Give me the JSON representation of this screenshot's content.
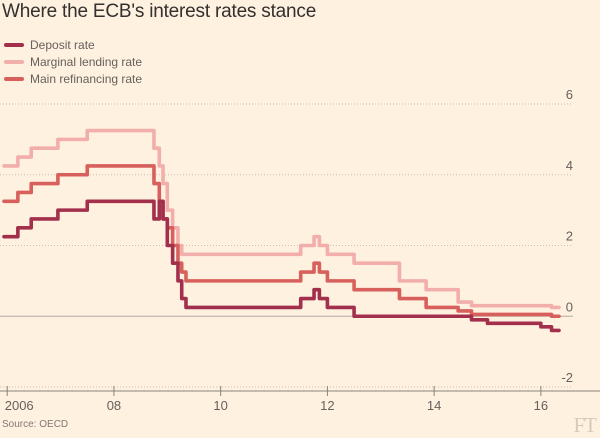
{
  "chart_data": {
    "type": "line",
    "title": "Where the ECB's interest rates stance",
    "source": "Source: OECD",
    "xlabel": "",
    "ylabel": "",
    "xlim": [
      2005.94,
      2016.34
    ],
    "ylim": [
      -2,
      6
    ],
    "x_ticks": [
      {
        "value": 2006,
        "label": "2006"
      },
      {
        "value": 2008,
        "label": "08"
      },
      {
        "value": 2010,
        "label": "10"
      },
      {
        "value": 2012,
        "label": "12"
      },
      {
        "value": 2014,
        "label": "14"
      },
      {
        "value": 2016,
        "label": "16"
      }
    ],
    "y_ticks": [
      {
        "value": 6,
        "label": "6"
      },
      {
        "value": 4,
        "label": "4"
      },
      {
        "value": 2,
        "label": "2"
      },
      {
        "value": 0,
        "label": "0"
      },
      {
        "value": -2,
        "label": "-2"
      }
    ],
    "series": [
      {
        "name": "Deposit rate",
        "color": "#a2304d",
        "steps": [
          [
            2005.94,
            2.25
          ],
          [
            2006.2,
            2.5
          ],
          [
            2006.45,
            2.75
          ],
          [
            2006.95,
            3.0
          ],
          [
            2007.45,
            3.0
          ],
          [
            2007.5,
            3.25
          ],
          [
            2008.6,
            3.25
          ],
          [
            2008.75,
            2.75
          ],
          [
            2008.85,
            3.25
          ],
          [
            2008.92,
            2.75
          ],
          [
            2009.0,
            2.0
          ],
          [
            2009.1,
            1.5
          ],
          [
            2009.2,
            1.0
          ],
          [
            2009.27,
            0.5
          ],
          [
            2009.35,
            0.25
          ],
          [
            2011.3,
            0.25
          ],
          [
            2011.5,
            0.5
          ],
          [
            2011.75,
            0.75
          ],
          [
            2011.85,
            0.5
          ],
          [
            2012.0,
            0.25
          ],
          [
            2012.5,
            0.0
          ],
          [
            2014.45,
            0.0
          ],
          [
            2014.7,
            -0.1
          ],
          [
            2015.0,
            -0.2
          ],
          [
            2015.95,
            -0.2
          ],
          [
            2016.0,
            -0.3
          ],
          [
            2016.2,
            -0.4
          ],
          [
            2016.34,
            -0.4
          ]
        ]
      },
      {
        "name": "Marginal lending rate",
        "color": "#f2aeaa",
        "steps": [
          [
            2005.94,
            4.25
          ],
          [
            2006.2,
            4.5
          ],
          [
            2006.45,
            4.75
          ],
          [
            2006.95,
            5.0
          ],
          [
            2007.45,
            5.0
          ],
          [
            2007.5,
            5.25
          ],
          [
            2008.6,
            5.25
          ],
          [
            2008.75,
            4.75
          ],
          [
            2008.85,
            4.25
          ],
          [
            2008.92,
            3.75
          ],
          [
            2009.0,
            3.0
          ],
          [
            2009.1,
            2.5
          ],
          [
            2009.2,
            2.0
          ],
          [
            2009.27,
            1.75
          ],
          [
            2011.3,
            1.75
          ],
          [
            2011.5,
            2.0
          ],
          [
            2011.75,
            2.25
          ],
          [
            2011.85,
            2.0
          ],
          [
            2012.0,
            1.75
          ],
          [
            2012.5,
            1.5
          ],
          [
            2013.35,
            1.0
          ],
          [
            2013.85,
            0.75
          ],
          [
            2014.45,
            0.4
          ],
          [
            2014.7,
            0.3
          ],
          [
            2015.95,
            0.3
          ],
          [
            2016.2,
            0.25
          ],
          [
            2016.34,
            0.25
          ]
        ]
      },
      {
        "name": "Main refinancing rate",
        "color": "#d7605c",
        "steps": [
          [
            2005.94,
            3.25
          ],
          [
            2006.2,
            3.5
          ],
          [
            2006.45,
            3.75
          ],
          [
            2006.95,
            4.0
          ],
          [
            2007.45,
            4.0
          ],
          [
            2007.5,
            4.25
          ],
          [
            2008.6,
            4.25
          ],
          [
            2008.75,
            3.75
          ],
          [
            2008.85,
            3.25
          ],
          [
            2008.92,
            2.75
          ],
          [
            2009.0,
            2.5
          ],
          [
            2009.1,
            2.0
          ],
          [
            2009.2,
            1.5
          ],
          [
            2009.27,
            1.25
          ],
          [
            2009.35,
            1.0
          ],
          [
            2011.3,
            1.0
          ],
          [
            2011.5,
            1.25
          ],
          [
            2011.75,
            1.5
          ],
          [
            2011.85,
            1.25
          ],
          [
            2012.0,
            1.0
          ],
          [
            2012.5,
            0.75
          ],
          [
            2013.35,
            0.5
          ],
          [
            2013.85,
            0.25
          ],
          [
            2014.45,
            0.15
          ],
          [
            2014.7,
            0.05
          ],
          [
            2015.95,
            0.05
          ],
          [
            2016.2,
            0.0
          ],
          [
            2016.34,
            0.0
          ]
        ]
      }
    ]
  }
}
